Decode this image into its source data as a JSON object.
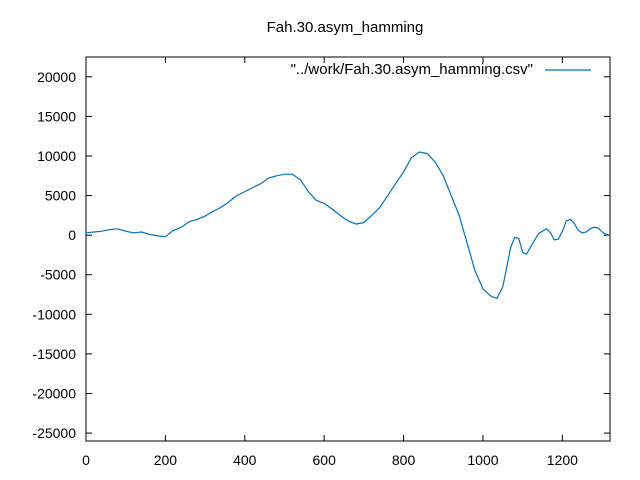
{
  "chart_data": {
    "type": "line",
    "title": "Fah.30.asym_hamming",
    "xlabel": "",
    "ylabel": "",
    "xlim": [
      0,
      1320
    ],
    "ylim": [
      -26000,
      22500
    ],
    "x_ticks": [
      0,
      200,
      400,
      600,
      800,
      1000,
      1200
    ],
    "y_ticks": [
      -25000,
      -20000,
      -15000,
      -10000,
      -5000,
      0,
      5000,
      10000,
      15000,
      20000
    ],
    "grid": false,
    "legend_position": "top-right",
    "series": [
      {
        "name": "\"../work/Fah.30.asym_hamming.csv\"",
        "color": "#0072bd",
        "x": [
          0,
          20,
          40,
          60,
          80,
          100,
          120,
          140,
          160,
          180,
          200,
          220,
          240,
          260,
          280,
          300,
          320,
          340,
          360,
          380,
          400,
          420,
          440,
          460,
          480,
          500,
          520,
          540,
          560,
          580,
          600,
          620,
          640,
          660,
          680,
          700,
          720,
          740,
          760,
          780,
          800,
          820,
          840,
          860,
          880,
          900,
          920,
          940,
          960,
          980,
          1000,
          1020,
          1035,
          1050,
          1060,
          1070,
          1080,
          1090,
          1100,
          1110,
          1120,
          1140,
          1160,
          1170,
          1180,
          1190,
          1200,
          1210,
          1220,
          1230,
          1240,
          1250,
          1260,
          1270,
          1280,
          1290,
          1300,
          1310,
          1320
        ],
        "values": [
          300,
          400,
          500,
          700,
          800,
          500,
          300,
          400,
          100,
          -100,
          -200,
          600,
          1000,
          1700,
          2000,
          2400,
          3000,
          3500,
          4200,
          5000,
          5500,
          6000,
          6500,
          7200,
          7500,
          7700,
          7700,
          7000,
          5500,
          4400,
          4000,
          3300,
          2500,
          1800,
          1400,
          1600,
          2500,
          3500,
          5000,
          6500,
          8000,
          9800,
          10500,
          10300,
          9200,
          7500,
          5000,
          2500,
          -1000,
          -4500,
          -6800,
          -7700,
          -8000,
          -6500,
          -4000,
          -1500,
          -300,
          -400,
          -2200,
          -2400,
          -1500,
          200,
          800,
          300,
          -600,
          -500,
          500,
          1800,
          2000,
          1500,
          600,
          300,
          400,
          800,
          1000,
          900,
          400,
          100,
          0
        ]
      }
    ]
  }
}
